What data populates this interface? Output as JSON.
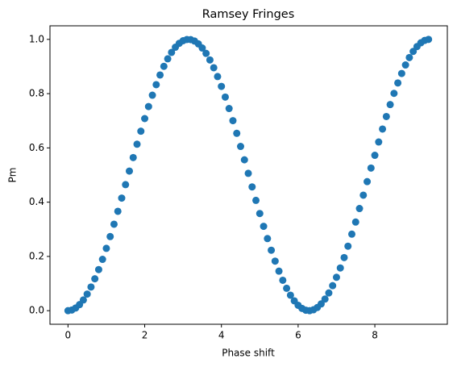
{
  "chart_data": {
    "type": "scatter",
    "title": "Ramsey Fringes",
    "xlabel": "Phase shift",
    "ylabel": "Pm",
    "color": "#1f77b4",
    "x": [
      0,
      0.1,
      0.2,
      0.3,
      0.4,
      0.5,
      0.6,
      0.7,
      0.8,
      0.9,
      1.0,
      1.1,
      1.2,
      1.3,
      1.4,
      1.5,
      1.6,
      1.7,
      1.8,
      1.9,
      2.0,
      2.1,
      2.2,
      2.3,
      2.4,
      2.5,
      2.6,
      2.7,
      2.8,
      2.9,
      3.0,
      3.1,
      3.2,
      3.3,
      3.4,
      3.5,
      3.6,
      3.7,
      3.8,
      3.9,
      4.0,
      4.1,
      4.2,
      4.3,
      4.4,
      4.5,
      4.6,
      4.7,
      4.8,
      4.9,
      5.0,
      5.1,
      5.2,
      5.3,
      5.4,
      5.5,
      5.6,
      5.7,
      5.8,
      5.9,
      6.0,
      6.1,
      6.2,
      6.3,
      6.4,
      6.5,
      6.6,
      6.7,
      6.8,
      6.9,
      7.0,
      7.1,
      7.2,
      7.3,
      7.4,
      7.5,
      7.6,
      7.7,
      7.8,
      7.9,
      8.0,
      8.1,
      8.2,
      8.3,
      8.4,
      8.5,
      8.6,
      8.7,
      8.8,
      8.9,
      9.0,
      9.1,
      9.2,
      9.3,
      9.4
    ],
    "values": [
      0,
      0.0025,
      0.01,
      0.0223,
      0.0395,
      0.0612,
      0.0873,
      0.1176,
      0.1516,
      0.1892,
      0.2298,
      0.2732,
      0.3188,
      0.3663,
      0.415,
      0.4646,
      0.5146,
      0.5644,
      0.6136,
      0.6616,
      0.7081,
      0.7524,
      0.7943,
      0.8331,
      0.8687,
      0.9006,
      0.9284,
      0.952,
      0.9711,
      0.9855,
      0.995,
      0.9996,
      0.9991,
      0.9937,
      0.9834,
      0.9682,
      0.9484,
      0.9241,
      0.8955,
      0.863,
      0.8268,
      0.7874,
      0.7451,
      0.7004,
      0.6537,
      0.6054,
      0.5561,
      0.5062,
      0.4563,
      0.4067,
      0.3582,
      0.311,
      0.2657,
      0.2228,
      0.1827,
      0.1457,
      0.1122,
      0.0826,
      0.0572,
      0.0363,
      0.0199,
      0.0084,
      0.0017,
      0.0001,
      0.0034,
      0.0117,
      0.0249,
      0.0428,
      0.0654,
      0.0923,
      0.123,
      0.1575,
      0.1958,
      0.2377,
      0.2822,
      0.3267,
      0.3765,
      0.4257,
      0.4757,
      0.5257,
      0.5728,
      0.6218,
      0.6696,
      0.7157,
      0.7596,
      0.801,
      0.8394,
      0.8744,
      0.9057,
      0.9331,
      0.9556,
      0.9736,
      0.9875,
      0.9962,
      1.0
    ],
    "xlim": [
      -0.47,
      9.89
    ],
    "ylim": [
      -0.05,
      1.05
    ],
    "xticks": [
      0,
      2,
      4,
      6,
      8
    ],
    "yticks": [
      {
        "value": 0,
        "label": "0.0"
      },
      0.2,
      0.4,
      0.6,
      0.8,
      {
        "value": 1,
        "label": "1.0"
      }
    ]
  }
}
